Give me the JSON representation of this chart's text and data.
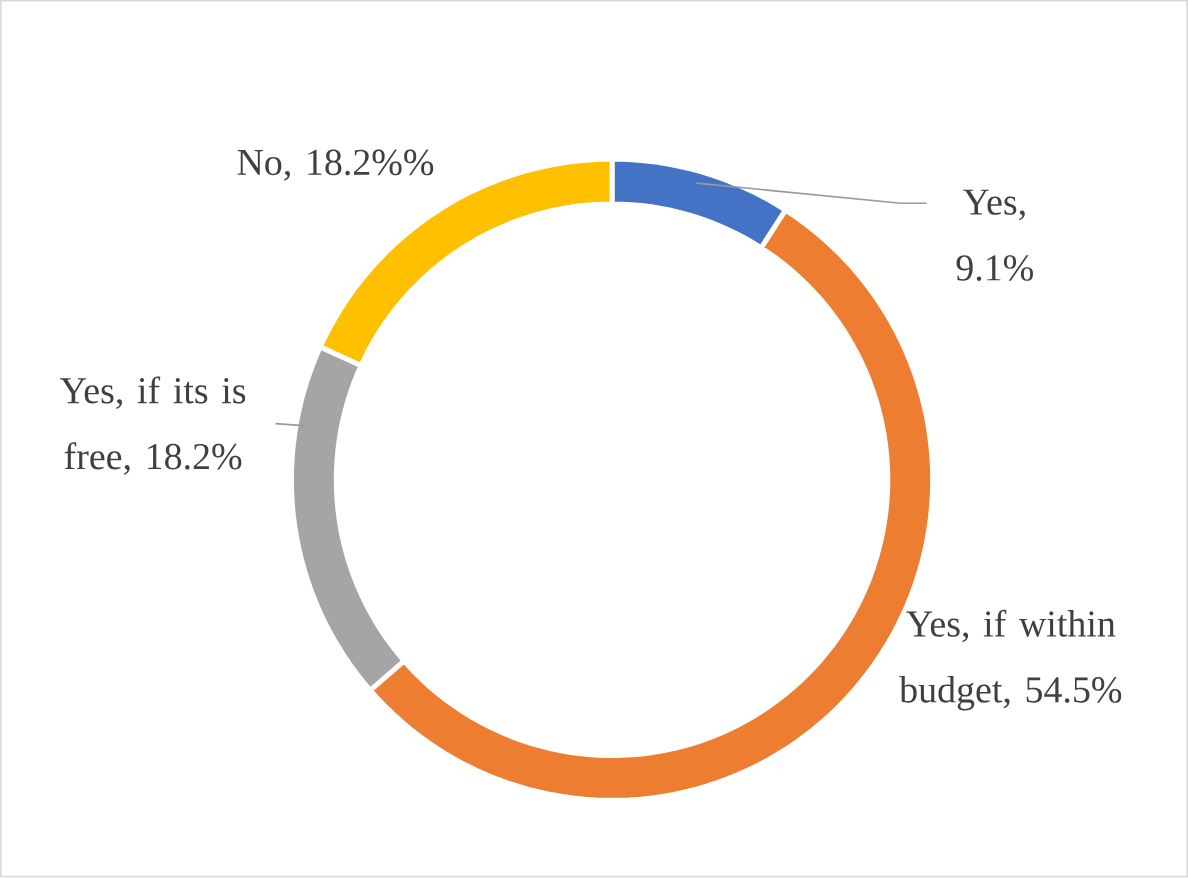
{
  "chart_data": {
    "type": "donut",
    "categories": [
      "Yes",
      "Yes, if within budget",
      "Yes, if its is free",
      "No"
    ],
    "values": [
      9.1,
      54.5,
      18.2,
      18.2
    ],
    "value_labels": [
      ", 9.1%",
      ", 54.5%",
      ", 18.2%",
      ", 18.2%%"
    ],
    "colors": [
      "#4472c4",
      "#ed7d31",
      "#a5a5a5",
      "#ffc000"
    ]
  }
}
